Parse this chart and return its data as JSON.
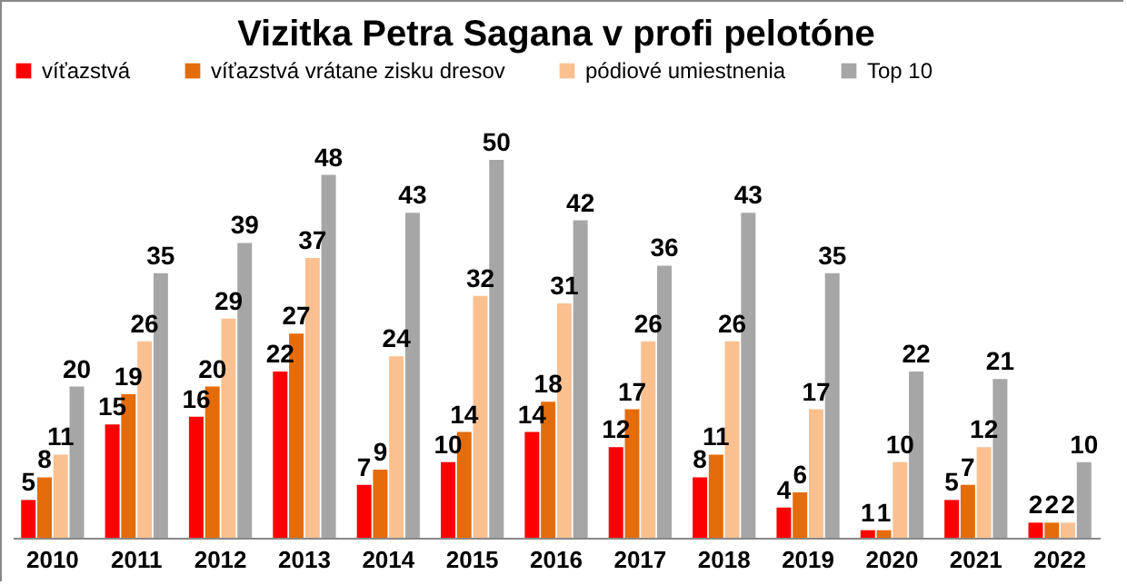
{
  "chart_data": {
    "type": "bar",
    "title": "Vizitka Petra Sagana v profi pelotóne",
    "categories": [
      "2010",
      "2011",
      "2012",
      "2013",
      "2014",
      "2015",
      "2016",
      "2017",
      "2018",
      "2019",
      "2020",
      "2021",
      "2022"
    ],
    "series": [
      {
        "name": "víťazstvá",
        "color": "#ff0000",
        "values": [
          5,
          15,
          16,
          22,
          7,
          10,
          14,
          12,
          8,
          4,
          1,
          5,
          2
        ]
      },
      {
        "name": "víťazstvá vrátane zisku dresov",
        "color": "#e46c0a",
        "values": [
          8,
          19,
          20,
          27,
          9,
          14,
          18,
          17,
          11,
          6,
          1,
          7,
          2
        ]
      },
      {
        "name": "pódiové umiestnenia",
        "color": "#fac090",
        "values": [
          11,
          26,
          29,
          37,
          24,
          32,
          31,
          26,
          26,
          17,
          10,
          12,
          2
        ]
      },
      {
        "name": "Top 10",
        "color": "#a6a6a6",
        "values": [
          20,
          35,
          39,
          48,
          43,
          50,
          42,
          36,
          43,
          35,
          22,
          21,
          10
        ]
      }
    ],
    "data_labels": true,
    "legend": "top",
    "grid": false
  }
}
